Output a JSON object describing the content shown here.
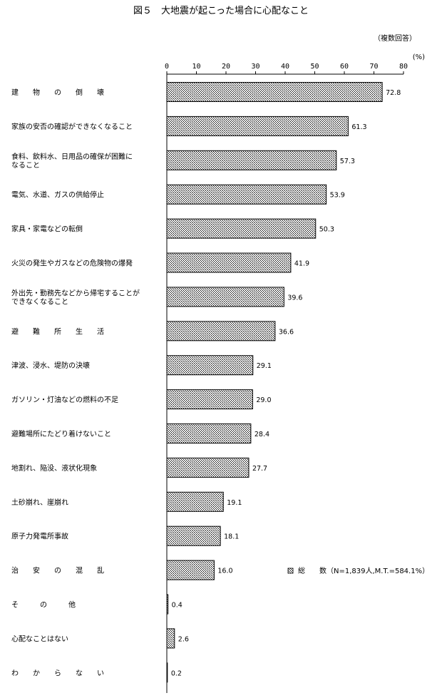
{
  "chart_data": {
    "type": "bar",
    "orientation": "horizontal",
    "title": "図５　大地震が起こった場合に心配なこと",
    "note": "（複数回答）",
    "unit": "(%)",
    "xlim": [
      0,
      80
    ],
    "xticks": [
      0,
      10,
      20,
      30,
      40,
      50,
      60,
      70,
      80
    ],
    "legend": {
      "position": "right",
      "label": "総　　数（N=1,839人,M.T.=584.1%）"
    },
    "categories": [
      [
        "建　　物　　の　　倒　　壊"
      ],
      [
        "家族の安否の確認ができなくなること"
      ],
      [
        "食料、飲料水、日用品の確保が困難に",
        "なること"
      ],
      [
        "電気、水道、ガスの供給停止"
      ],
      [
        "家具・家電などの転倒"
      ],
      [
        "火災の発生やガスなどの危険物の爆発"
      ],
      [
        "外出先・勤務先などから帰宅することが",
        "できなくなること"
      ],
      [
        "避　　難　　所　　生　　活"
      ],
      [
        "津波、浸水、堤防の決壊"
      ],
      [
        "ガソリン・灯油などの燃料の不足"
      ],
      [
        "避難場所にたどり着けないこと"
      ],
      [
        "地割れ、陥没、液状化現象"
      ],
      [
        "土砂崩れ、崖崩れ"
      ],
      [
        "原子力発電所事故"
      ],
      [
        "治　　安　　の　　混　　乱"
      ],
      [
        "そ　　　の　　　他"
      ],
      [
        "心配なことはない"
      ],
      [
        "わ　　か　　ら　　な　　い"
      ]
    ],
    "series": [
      {
        "name": "総　　数",
        "values": [
          72.8,
          61.3,
          57.3,
          53.9,
          50.3,
          41.9,
          39.6,
          36.6,
          29.1,
          29.0,
          28.4,
          27.7,
          19.1,
          18.1,
          16.0,
          0.4,
          2.6,
          0.2
        ],
        "labels": [
          "72.8",
          "61.3",
          "57.3",
          "53.9",
          "50.3",
          "41.9",
          "39.6",
          "36.6",
          "29.1",
          "29.0",
          "28.4",
          "27.7",
          "19.1",
          "18.1",
          "16.0",
          "0.4",
          "2.6",
          "0.2"
        ]
      }
    ]
  }
}
